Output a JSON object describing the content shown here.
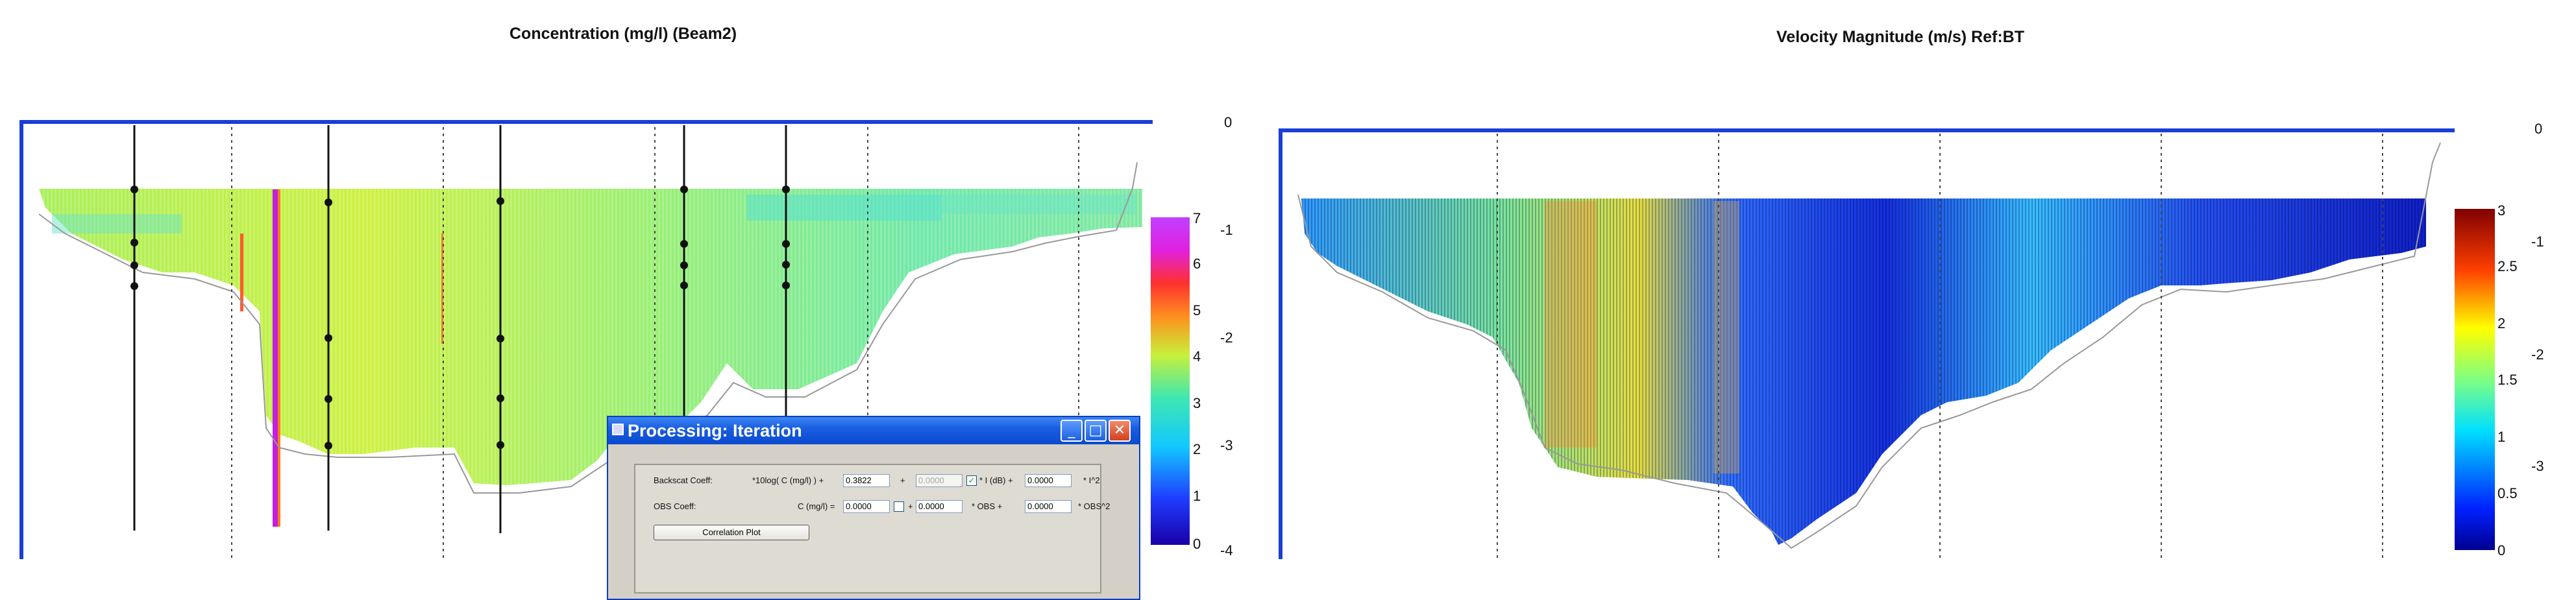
{
  "left_plot": {
    "title": "Concentration (mg/l) (Beam2)",
    "depth_ticks": [
      "0",
      "-1",
      "-2",
      "-3",
      "-4"
    ],
    "colorbar_ticks": [
      "7",
      "6",
      "5",
      "4",
      "3",
      "2",
      "1",
      "0"
    ]
  },
  "right_plot": {
    "title": "Velocity Magnitude (m/s) Ref:BT",
    "depth_ticks": [
      "0",
      "-1",
      "-2",
      "-3"
    ],
    "colorbar_ticks": [
      "3",
      "2.5",
      "2",
      "1.5",
      "1",
      "0.5",
      "0"
    ]
  },
  "dialog": {
    "title": "Processing: Iteration",
    "backscat_label": "Backscat Coeff:",
    "backscat_formula": "*10log( C (mg/l) ) +",
    "backscat_value1": "0.3822",
    "plus1": "+",
    "backscat_disabled_value": "0.0000",
    "db_label": "* I (dB)  +",
    "backscat_value2": "0.0000",
    "pow2_label": "* I^2",
    "obs_label": "OBS Coeff:",
    "obs_formula": "C (mg/l) =",
    "obs_value1": "0.0000",
    "plus2": "+",
    "obs_value2": "0.0000",
    "obs_mid_label": "* OBS  +",
    "obs_value3": "0.0000",
    "obs_pow2_label": "* OBS^2",
    "correlation_button": "Correlation Plot",
    "minimize": "_",
    "maximize": "□",
    "close": "✕"
  }
}
